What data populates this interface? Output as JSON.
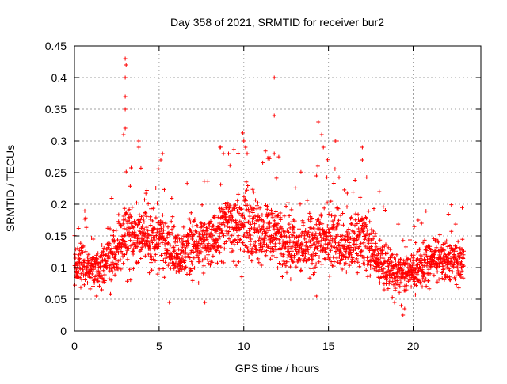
{
  "chart_data": {
    "type": "scatter",
    "title": "Day 358 of 2021, SRMTID for receiver bur2",
    "xlabel": "GPS time / hours",
    "ylabel": "SRMTID / TECUs",
    "xlim": [
      0,
      24
    ],
    "ylim": [
      0,
      0.45
    ],
    "x_ticks": [
      0,
      5,
      10,
      15,
      20
    ],
    "y_ticks": [
      0,
      0.05,
      0.1,
      0.15,
      0.2,
      0.25,
      0.3,
      0.35,
      0.4,
      0.45
    ],
    "x_tick_labels": [
      "0",
      "5",
      "10",
      "15",
      "20"
    ],
    "y_tick_labels": [
      "0",
      "0.05",
      "0.1",
      "0.15",
      "0.2",
      "0.25",
      "0.3",
      "0.35",
      "0.4",
      "0.45"
    ],
    "grid": true,
    "marker": "plus",
    "color": "#ff0000",
    "series": [
      {
        "name": "SRMTID",
        "trend": [
          {
            "x": 0.0,
            "y": 0.1
          },
          {
            "x": 1.0,
            "y": 0.1
          },
          {
            "x": 2.0,
            "y": 0.11
          },
          {
            "x": 3.0,
            "y": 0.15
          },
          {
            "x": 4.0,
            "y": 0.15
          },
          {
            "x": 5.0,
            "y": 0.14
          },
          {
            "x": 6.0,
            "y": 0.12
          },
          {
            "x": 7.0,
            "y": 0.13
          },
          {
            "x": 8.0,
            "y": 0.14
          },
          {
            "x": 9.0,
            "y": 0.17
          },
          {
            "x": 10.0,
            "y": 0.17
          },
          {
            "x": 11.0,
            "y": 0.16
          },
          {
            "x": 12.0,
            "y": 0.15
          },
          {
            "x": 13.0,
            "y": 0.13
          },
          {
            "x": 14.0,
            "y": 0.14
          },
          {
            "x": 15.0,
            "y": 0.15
          },
          {
            "x": 16.0,
            "y": 0.13
          },
          {
            "x": 17.0,
            "y": 0.15
          },
          {
            "x": 18.0,
            "y": 0.11
          },
          {
            "x": 19.0,
            "y": 0.09
          },
          {
            "x": 20.0,
            "y": 0.09
          },
          {
            "x": 21.0,
            "y": 0.11
          },
          {
            "x": 22.0,
            "y": 0.11
          },
          {
            "x": 23.0,
            "y": 0.11
          }
        ],
        "peaks": [
          {
            "x": 3.0,
            "y": 0.43
          },
          {
            "x": 3.05,
            "y": 0.42
          },
          {
            "x": 3.0,
            "y": 0.4
          },
          {
            "x": 3.0,
            "y": 0.37
          },
          {
            "x": 3.0,
            "y": 0.35
          },
          {
            "x": 3.0,
            "y": 0.32
          },
          {
            "x": 2.9,
            "y": 0.31
          },
          {
            "x": 3.8,
            "y": 0.3
          },
          {
            "x": 3.8,
            "y": 0.29
          },
          {
            "x": 5.2,
            "y": 0.28
          },
          {
            "x": 5.1,
            "y": 0.27
          },
          {
            "x": 8.6,
            "y": 0.29
          },
          {
            "x": 8.8,
            "y": 0.28
          },
          {
            "x": 9.1,
            "y": 0.28
          },
          {
            "x": 10.0,
            "y": 0.3
          },
          {
            "x": 10.1,
            "y": 0.29
          },
          {
            "x": 10.2,
            "y": 0.28
          },
          {
            "x": 11.8,
            "y": 0.4
          },
          {
            "x": 11.8,
            "y": 0.34
          },
          {
            "x": 11.8,
            "y": 0.28
          },
          {
            "x": 14.4,
            "y": 0.33
          },
          {
            "x": 14.6,
            "y": 0.31
          },
          {
            "x": 14.7,
            "y": 0.29
          },
          {
            "x": 15.4,
            "y": 0.3
          },
          {
            "x": 15.5,
            "y": 0.3
          },
          {
            "x": 17.0,
            "y": 0.29
          },
          {
            "x": 17.0,
            "y": 0.27
          },
          {
            "x": 18.0,
            "y": 0.22
          },
          {
            "x": 20.3,
            "y": 0.175
          },
          {
            "x": 20.5,
            "y": 0.17
          }
        ],
        "lows": [
          {
            "x": 19.4,
            "y": 0.025
          },
          {
            "x": 19.5,
            "y": 0.035
          },
          {
            "x": 19.3,
            "y": 0.04
          },
          {
            "x": 7.7,
            "y": 0.045
          },
          {
            "x": 5.6,
            "y": 0.045
          },
          {
            "x": 18.9,
            "y": 0.045
          },
          {
            "x": 1.3,
            "y": 0.055
          },
          {
            "x": 14.3,
            "y": 0.055
          }
        ]
      }
    ]
  }
}
